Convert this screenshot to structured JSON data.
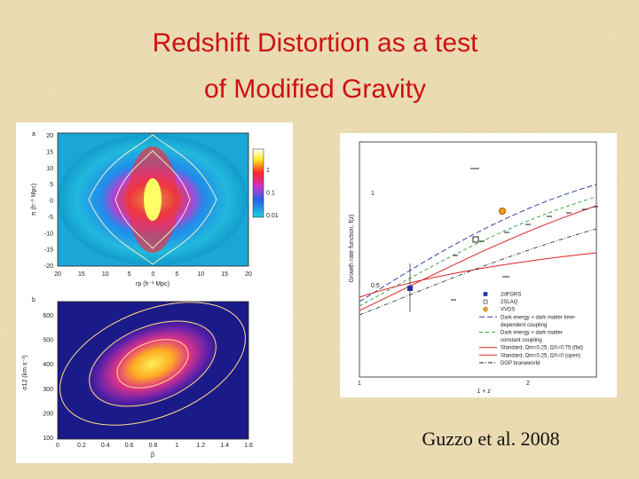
{
  "title": [
    "Redshift Distortion as a test",
    "of Modified Gravity"
  ],
  "citation": "Guzzo et al. 2008",
  "figure_a": {
    "panel": "a",
    "ylabel": "π (h⁻¹ Mpc)",
    "xlabel": "rp (h⁻¹ Mpc)",
    "yticks": [
      "20",
      "15",
      "10",
      "5",
      "0",
      "-5",
      "-10",
      "-15",
      "-20"
    ],
    "xticks": [
      "20",
      "15",
      "10",
      "5",
      "0",
      "5",
      "10",
      "15",
      "20"
    ],
    "colorbar_ticks": [
      "1",
      "0.1",
      "0.01"
    ]
  },
  "figure_b": {
    "panel": "b",
    "ylabel": "σ12 (km s⁻¹)",
    "xlabel": "β",
    "yticks": [
      "600",
      "500",
      "400",
      "300",
      "200",
      "100"
    ],
    "xticks": [
      "0",
      "0.2",
      "0.4",
      "0.6",
      "0.8",
      "1",
      "1.2",
      "1.4",
      "1.6"
    ]
  },
  "figure_c": {
    "ylabel": "Growth rate function, f(z)",
    "xlabel": "1 + z",
    "yticks": [
      "1",
      "0.5"
    ],
    "xticks": [
      "1",
      "2"
    ],
    "legend": [
      "2dFGRS",
      "2SLAQ",
      "VVDS",
      "Dark energy + dark matter time-",
      "dependent coupling",
      "Dark energy + dark matter",
      "constant coupling",
      "Standard, Ωm=0.25, ΩΛ=0.75 (flat)",
      "Standard, Ωm=0.25, ΩΛ=0 (open)",
      "DGP braneworld"
    ]
  }
}
